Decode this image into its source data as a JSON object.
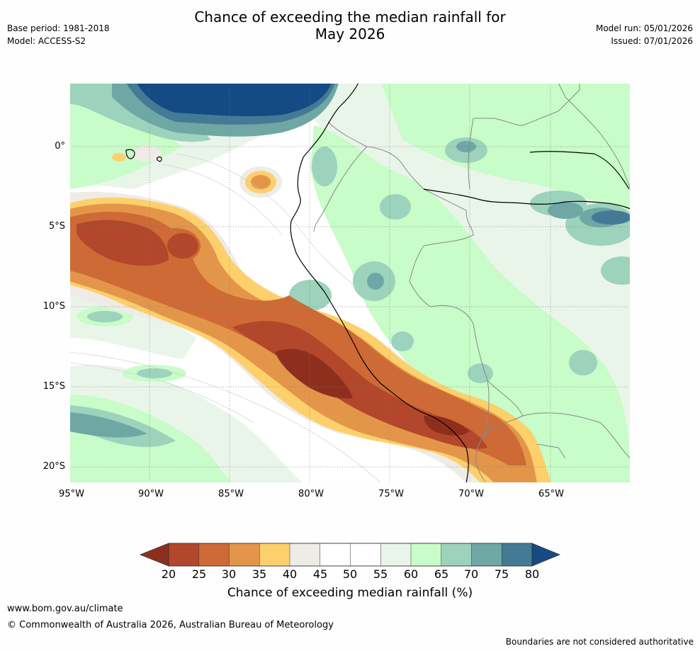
{
  "header": {
    "title_line1": "Chance of exceeding the median rainfall for",
    "title_line2": "May 2026",
    "base_period": "Base period: 1981-2018",
    "model": "Model: ACCESS-S2",
    "model_run": "Model run: 05/01/2026",
    "issued": "Issued: 07/01/2026"
  },
  "map": {
    "lat_labels": [
      "0°",
      "5°S",
      "10°S",
      "15°S",
      "20°S"
    ],
    "lon_labels": [
      "95°W",
      "90°W",
      "85°W",
      "80°W",
      "75°W",
      "70°W",
      "65°W"
    ]
  },
  "legend": {
    "ticks": [
      "20",
      "25",
      "30",
      "35",
      "40",
      "45",
      "50",
      "55",
      "60",
      "65",
      "70",
      "75",
      "80"
    ],
    "colors": [
      "#8e2f1e",
      "#b2472b",
      "#cd6a35",
      "#e39649",
      "#fdd06c",
      "#efebe6",
      "#ffffff",
      "#ffffff",
      "#eaf5ea",
      "#c8fcc8",
      "#9dd2bc",
      "#6fa7a4",
      "#447a95",
      "#144b84"
    ],
    "title": "Chance of exceeding median rainfall (%)"
  },
  "footer": {
    "website": "www.bom.gov.au/climate",
    "copyright": "© Commonwealth of Australia 2026, Australian Bureau of Meteorology",
    "disclaimer": "Boundaries are not considered authoritative"
  }
}
